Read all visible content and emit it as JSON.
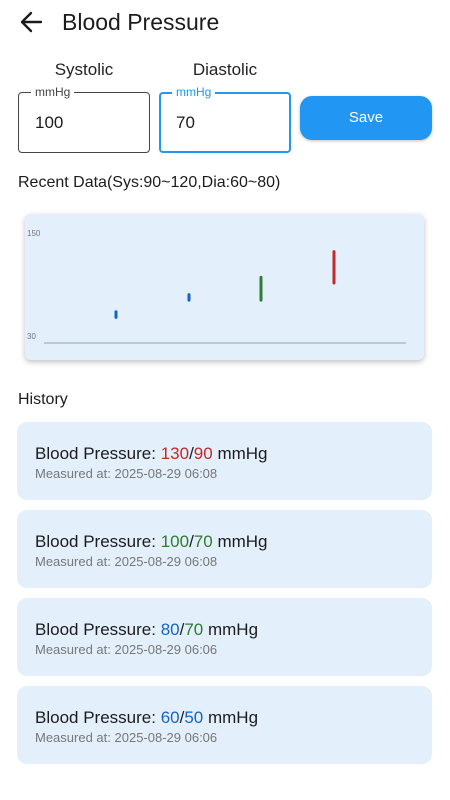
{
  "header": {
    "title": "Blood Pressure",
    "back_icon": "arrow-left-icon"
  },
  "form": {
    "systolic_label": "Systolic",
    "diastolic_label": "Diastolic",
    "systolic_unit": "mmHg",
    "diastolic_unit": "mmHg",
    "systolic_value": "100",
    "diastolic_value": "70",
    "save_label": "Save",
    "accent_color": "#2196f3"
  },
  "recent": {
    "title": "Recent Data(Sys:90~120,Dia:60~80)"
  },
  "chart_data": {
    "type": "bar",
    "ylim": [
      30,
      150
    ],
    "y_ticks": [
      "150",
      "30"
    ],
    "bars": [
      {
        "low": 50,
        "high": 60,
        "color": "#1565c0"
      },
      {
        "low": 70,
        "high": 80,
        "color": "#1565c0"
      },
      {
        "low": 70,
        "high": 100,
        "color": "#2e7d32"
      },
      {
        "low": 90,
        "high": 130,
        "color": "#c62828"
      }
    ]
  },
  "history": {
    "title": "History",
    "label_prefix": "Blood Pressure: ",
    "unit": " mmHg",
    "measured_prefix": "Measured at: ",
    "items": [
      {
        "sys": "130",
        "dia": "90",
        "sys_color": "red",
        "dia_color": "red",
        "time": "2025-08-29 06:08"
      },
      {
        "sys": "100",
        "dia": "70",
        "sys_color": "green",
        "dia_color": "green",
        "time": "2025-08-29 06:08"
      },
      {
        "sys": "80",
        "dia": "70",
        "sys_color": "blue",
        "dia_color": "green",
        "time": "2025-08-29 06:06"
      },
      {
        "sys": "60",
        "dia": "50",
        "sys_color": "blue",
        "dia_color": "blue",
        "time": "2025-08-29 06:06"
      }
    ]
  }
}
